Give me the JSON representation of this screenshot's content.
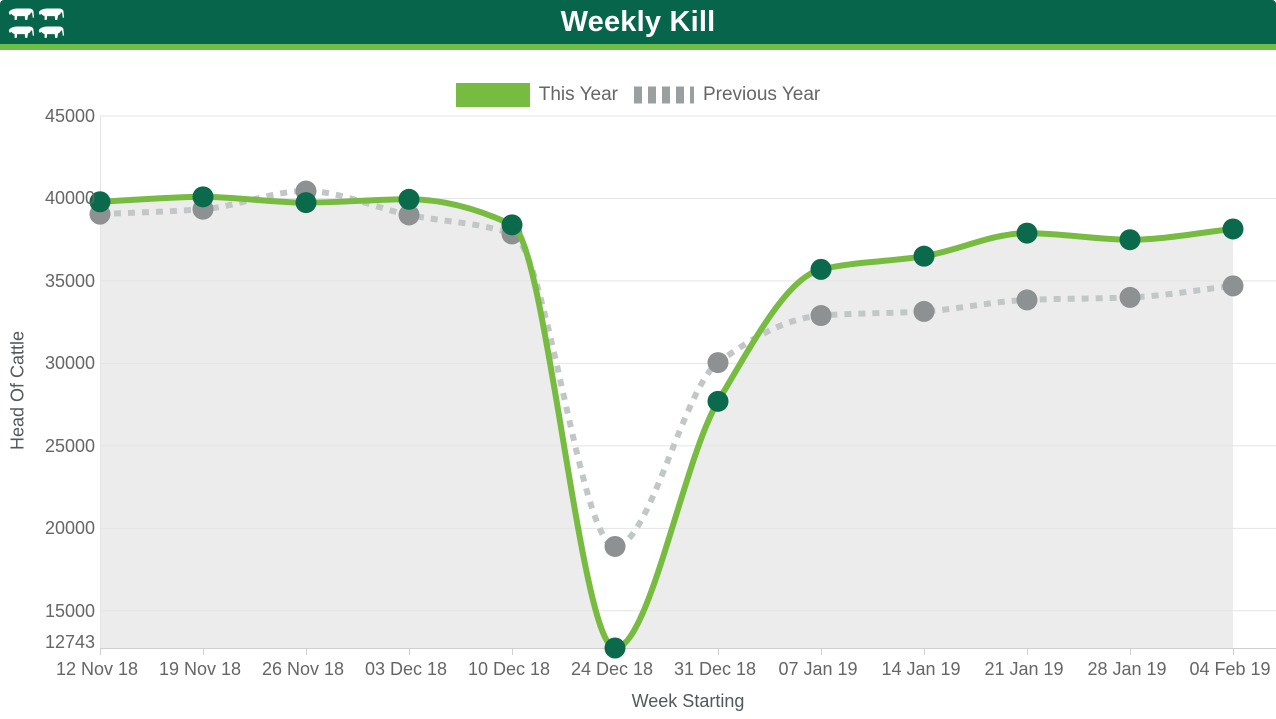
{
  "header": {
    "title": "Weekly Kill",
    "logo": "cattle-logo"
  },
  "legend": {
    "items": [
      "This Year",
      "Previous Year"
    ]
  },
  "colors": {
    "header_green": "#06654b",
    "header_stripe": "#6cbf44",
    "this_year_line": "#77bc41",
    "this_year_marker": "#0b6a4b",
    "previous_year_line": "#c3c6c6",
    "previous_year_marker": "#8d9192",
    "area_fill": "#ececec",
    "grid_line": "#e4e4e4",
    "axis_line": "#d0d0d0",
    "label_text": "#666666",
    "axis_title_text": "#54585a"
  },
  "chart_data": {
    "type": "line",
    "title": "Weekly Kill",
    "xlabel": "Week Starting",
    "ylabel": "Head Of Cattle",
    "categories": [
      "12 Nov 18",
      "19 Nov 18",
      "26 Nov 18",
      "03 Dec 18",
      "10 Dec 18",
      "24 Dec 18",
      "31 Dec 18",
      "07 Jan 19",
      "14 Jan 19",
      "21 Jan 19",
      "28 Jan 19",
      "04 Feb 19"
    ],
    "series": [
      {
        "name": "This Year",
        "style": "solid",
        "smooth": true,
        "color": "#77bc41",
        "marker_color": "#0b6a4b",
        "area_fill": "#ececec",
        "values": [
          39800,
          40100,
          39750,
          39950,
          38400,
          12743,
          27700,
          35700,
          36500,
          37900,
          37500,
          38150
        ]
      },
      {
        "name": "Previous Year",
        "style": "dotted",
        "smooth": true,
        "color": "#c3c6c6",
        "marker_color": "#8d9192",
        "area_fill": null,
        "values": [
          39050,
          39350,
          40450,
          39000,
          37850,
          18900,
          30050,
          32900,
          33150,
          33850,
          34000,
          34700
        ]
      }
    ],
    "y_ticks": [
      45000,
      40000,
      35000,
      30000,
      25000,
      20000,
      15000,
      12743
    ],
    "ylim": [
      12743,
      45000
    ],
    "grid": true,
    "legend_position": "top"
  }
}
